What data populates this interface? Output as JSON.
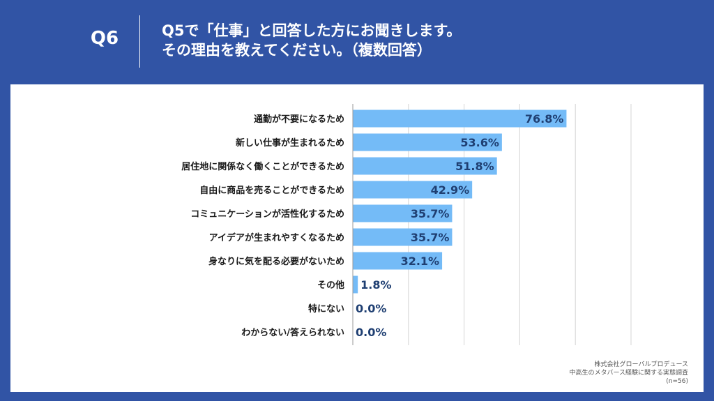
{
  "header": {
    "qnum": "Q6",
    "question_line1": "Q5で「仕事」と回答した方にお聞きします。",
    "question_line2": "その理由を教えてください。（複数回答）"
  },
  "footer": {
    "company": "株式会社グローバルプロデュース",
    "survey": "中高生のメタバース経験に関する実態調査",
    "n": "(n=56)"
  },
  "colors": {
    "bar": "#74bbf7",
    "label_inside": "#1f3f72",
    "label_outside": "#1f3f72",
    "grid": "#d4d4d4",
    "axis": "#999999"
  },
  "chart_data": {
    "type": "bar",
    "orientation": "horizontal",
    "categories": [
      "通勤が不要になるため",
      "新しい仕事が生まれるため",
      "居住地に関係なく働くことができるため",
      "自由に商品を売ることができるため",
      "コミュニケーションが活性化するため",
      "アイデアが生まれやすくなるため",
      "身なりに気を配る必要がないため",
      "その他",
      "特にない",
      "わからない/答えられない"
    ],
    "values": [
      76.8,
      53.6,
      51.8,
      42.9,
      35.7,
      35.7,
      32.1,
      1.8,
      0.0,
      0.0
    ],
    "value_labels": [
      "76.8%",
      "53.6%",
      "51.8%",
      "42.9%",
      "35.7%",
      "35.7%",
      "32.1%",
      "1.8%",
      "0.0%",
      "0.0%"
    ],
    "xlim": [
      0,
      100
    ],
    "grid": true
  }
}
